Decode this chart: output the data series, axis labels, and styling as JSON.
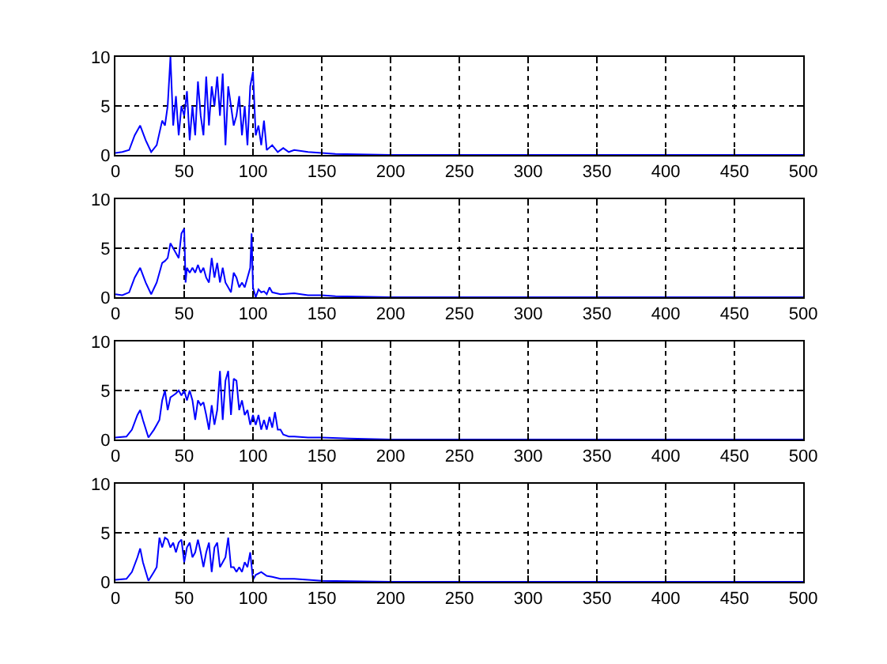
{
  "chart_data": [
    {
      "type": "line",
      "xlim": [
        0,
        500
      ],
      "xticks": [
        0,
        50,
        100,
        150,
        200,
        250,
        300,
        350,
        400,
        450,
        500
      ],
      "ylim": [
        0,
        10
      ],
      "yticks": [
        0,
        5,
        10
      ],
      "grid": true,
      "marker": "none",
      "line_style": "solid",
      "x": [
        0,
        5,
        10,
        14,
        18,
        22,
        26,
        30,
        34,
        36,
        38,
        40,
        42,
        44,
        46,
        48,
        50,
        52,
        54,
        56,
        58,
        60,
        62,
        64,
        66,
        68,
        70,
        72,
        74,
        76,
        78,
        80,
        82,
        84,
        86,
        88,
        90,
        92,
        94,
        96,
        98,
        100,
        102,
        104,
        106,
        108,
        110,
        114,
        118,
        122,
        126,
        130,
        140,
        150,
        160,
        200,
        300,
        500
      ],
      "series": [
        {
          "color": "#0000ff",
          "values": [
            0.2,
            0.3,
            0.5,
            2,
            3,
            1.5,
            0.3,
            1,
            3.5,
            3,
            5,
            10,
            3,
            6,
            2,
            5,
            4,
            6.5,
            1.5,
            5,
            2,
            7.5,
            4,
            2,
            8,
            3,
            7,
            5,
            8,
            4,
            8.3,
            1,
            7,
            5,
            3,
            4,
            6,
            2,
            5,
            1,
            7,
            8.5,
            2,
            3,
            1,
            3.5,
            0.5,
            1,
            0.3,
            0.7,
            0.3,
            0.5,
            0.3,
            0.2,
            0.1,
            0,
            0,
            0
          ]
        }
      ]
    },
    {
      "type": "line",
      "xlim": [
        0,
        500
      ],
      "xticks": [
        0,
        50,
        100,
        150,
        200,
        250,
        300,
        350,
        400,
        450,
        500
      ],
      "ylim": [
        0,
        10
      ],
      "yticks": [
        0,
        5,
        10
      ],
      "grid": true,
      "marker": "none",
      "line_style": "solid",
      "x": [
        0,
        5,
        10,
        14,
        18,
        22,
        26,
        30,
        34,
        36,
        38,
        40,
        42,
        44,
        46,
        48,
        50,
        51,
        52,
        54,
        56,
        58,
        60,
        62,
        64,
        66,
        68,
        70,
        72,
        74,
        76,
        78,
        80,
        82,
        84,
        86,
        88,
        90,
        92,
        94,
        96,
        98,
        99,
        100,
        102,
        104,
        106,
        108,
        110,
        112,
        114,
        120,
        130,
        140,
        150,
        160,
        200,
        300,
        500
      ],
      "series": [
        {
          "color": "#0000ff",
          "values": [
            0.3,
            0.2,
            0.5,
            2,
            3,
            1.5,
            0.3,
            1.5,
            3.5,
            3.7,
            4,
            5.5,
            5,
            4.5,
            4,
            6.5,
            7,
            1.5,
            3,
            2.5,
            3,
            2.5,
            3.3,
            2.5,
            3,
            2,
            1.5,
            4,
            2,
            3.5,
            1.5,
            3,
            1.5,
            1,
            0.5,
            2.5,
            2,
            1,
            1.5,
            1,
            2,
            3,
            6.5,
            1,
            0,
            0.8,
            0.5,
            0.6,
            0.3,
            1,
            0.5,
            0.3,
            0.4,
            0.2,
            0.2,
            0.1,
            0,
            0,
            0
          ]
        }
      ]
    },
    {
      "type": "line",
      "xlim": [
        0,
        500
      ],
      "xticks": [
        0,
        50,
        100,
        150,
        200,
        250,
        300,
        350,
        400,
        450,
        500
      ],
      "ylim": [
        0,
        10
      ],
      "yticks": [
        0,
        5,
        10
      ],
      "grid": true,
      "marker": "none",
      "line_style": "solid",
      "x": [
        0,
        8,
        12,
        16,
        18,
        20,
        24,
        28,
        30,
        32,
        34,
        36,
        38,
        40,
        42,
        44,
        46,
        48,
        50,
        52,
        54,
        56,
        58,
        60,
        62,
        64,
        66,
        68,
        70,
        72,
        74,
        76,
        78,
        80,
        82,
        84,
        86,
        88,
        90,
        92,
        94,
        96,
        98,
        100,
        102,
        104,
        106,
        108,
        110,
        112,
        114,
        116,
        118,
        120,
        122,
        126,
        130,
        140,
        150,
        170,
        200,
        500
      ],
      "series": [
        {
          "color": "#0000ff",
          "values": [
            0.2,
            0.3,
            1,
            2.5,
            3,
            2,
            0.2,
            1,
            1.5,
            2,
            4,
            5,
            3,
            4.3,
            4.5,
            4.7,
            5,
            4.5,
            5,
            4,
            5,
            4,
            2,
            4,
            3.5,
            3.8,
            2.5,
            1,
            3.5,
            1.5,
            3,
            7,
            2,
            6,
            7,
            2.5,
            6.2,
            6,
            3,
            4,
            2.5,
            3,
            1.5,
            2.5,
            1.5,
            2.5,
            1,
            2,
            1,
            2.3,
            1.2,
            2.8,
            1,
            1,
            0.5,
            0.3,
            0.3,
            0.2,
            0.2,
            0.1,
            0,
            0
          ]
        }
      ]
    },
    {
      "type": "line",
      "xlim": [
        0,
        500
      ],
      "xticks": [
        0,
        50,
        100,
        150,
        200,
        250,
        300,
        350,
        400,
        450,
        500
      ],
      "ylim": [
        0,
        10
      ],
      "yticks": [
        0,
        5,
        10
      ],
      "grid": true,
      "marker": "none",
      "line_style": "solid",
      "x": [
        0,
        8,
        12,
        16,
        18,
        20,
        24,
        28,
        30,
        32,
        34,
        36,
        38,
        40,
        42,
        44,
        46,
        48,
        50,
        52,
        54,
        56,
        58,
        60,
        62,
        64,
        66,
        68,
        70,
        72,
        74,
        76,
        78,
        80,
        82,
        84,
        86,
        88,
        90,
        92,
        94,
        96,
        98,
        100,
        102,
        106,
        110,
        114,
        120,
        130,
        140,
        150,
        200,
        500
      ],
      "series": [
        {
          "color": "#0000ff",
          "values": [
            0.2,
            0.3,
            1,
            2.5,
            3.4,
            2,
            0.1,
            1,
            1.5,
            4.5,
            3.5,
            4.5,
            4.3,
            3.5,
            4,
            3,
            4,
            4.3,
            2,
            3.5,
            4,
            2.5,
            3,
            4.3,
            3,
            1.5,
            3,
            4,
            1,
            3.5,
            4,
            1.5,
            2,
            2.5,
            4.5,
            1.5,
            1.5,
            1,
            1.5,
            1,
            2,
            1.5,
            3,
            0.2,
            0.7,
            1,
            0.6,
            0.5,
            0.3,
            0.3,
            0.2,
            0.1,
            0,
            0
          ]
        }
      ]
    }
  ]
}
